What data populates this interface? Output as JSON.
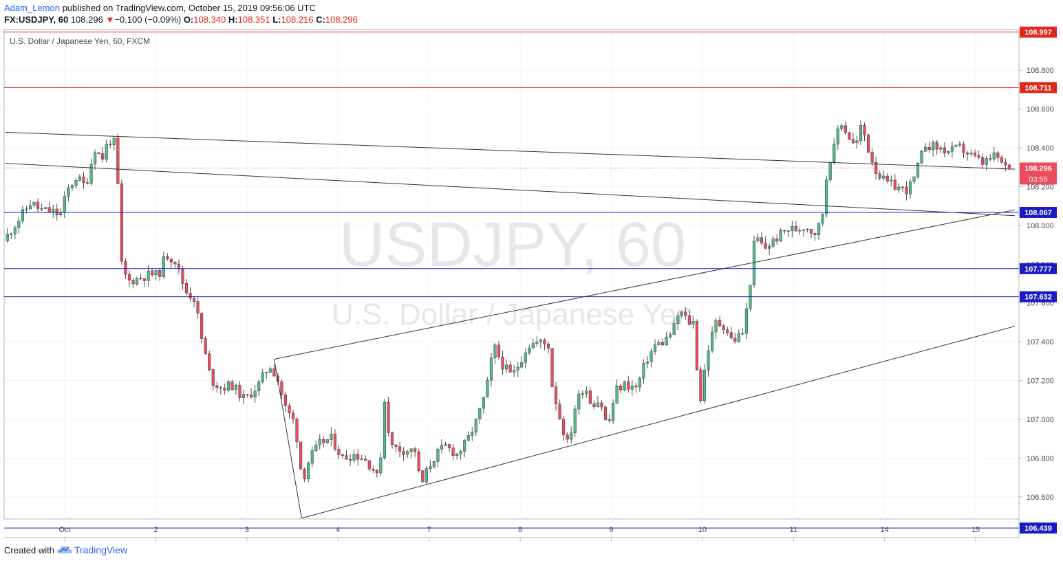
{
  "header": {
    "author": "Adam_Lemon",
    "published_text": "published on TradingView.com, October 15, 2019 09:56:06 UTC",
    "symbol": "FX:USDJPY, 60",
    "last": "108.296",
    "change_arrow": "▼",
    "change": "−0.100 (−0.09%)",
    "o_label": "O:",
    "o_val": "108.340",
    "h_label": "H:",
    "h_val": "108.351",
    "l_label": "L:",
    "l_val": "108.216",
    "c_label": "C:",
    "c_val": "108.296"
  },
  "pane_title": "U.S. Dollar / Japanese Yen, 60, FXCM",
  "watermark": {
    "line1": "USDJPY, 60",
    "line2": "U.S. Dollar / Japanese Yen"
  },
  "footer": {
    "created_with": "Created with",
    "brand": "TradingView",
    "logo_icon": "tradingview-cloud-icon"
  },
  "colors": {
    "up": "#53b987",
    "down": "#eb4d5c",
    "resistance": "#e0281b",
    "support": "#1b1bc4",
    "trend": "#333333"
  },
  "chart_data": {
    "type": "candlestick",
    "ylim": [
      106.39,
      109.01
    ],
    "y_ticks": [
      "108.800",
      "108.600",
      "108.400",
      "108.200",
      "108.000",
      "107.800",
      "107.600",
      "107.400",
      "107.200",
      "107.000",
      "106.800",
      "106.600"
    ],
    "x_ticks": [
      {
        "label": "Oct",
        "t": 0.65
      },
      {
        "label": "2",
        "t": 1.65
      },
      {
        "label": "3",
        "t": 2.65
      },
      {
        "label": "4",
        "t": 3.65
      },
      {
        "label": "7",
        "t": 4.65
      },
      {
        "label": "8",
        "t": 5.65
      },
      {
        "label": "9",
        "t": 6.65
      },
      {
        "label": "10",
        "t": 7.65
      },
      {
        "label": "11",
        "t": 8.65
      },
      {
        "label": "14",
        "t": 9.65
      },
      {
        "label": "15",
        "t": 10.65
      }
    ],
    "t_range": [
      0,
      11.08
    ],
    "horizontal_levels": [
      {
        "value": 108.997,
        "label": "108.997",
        "kind": "resistance"
      },
      {
        "value": 108.711,
        "label": "108.711",
        "kind": "resistance"
      },
      {
        "value": 108.067,
        "label": "108.067",
        "kind": "support"
      },
      {
        "value": 107.777,
        "label": "107.777",
        "kind": "support"
      },
      {
        "value": 107.632,
        "label": "107.632",
        "kind": "support"
      },
      {
        "value": 106.439,
        "label": "106.439",
        "kind": "support"
      }
    ],
    "last_price": {
      "value": 108.296,
      "label": "108.296",
      "countdown": "03:55"
    },
    "trendlines": [
      {
        "t1": 0.0,
        "p1": 108.48,
        "t2": 11.08,
        "p2": 108.29
      },
      {
        "t1": 0.0,
        "p1": 108.32,
        "t2": 11.08,
        "p2": 108.05
      },
      {
        "t1": 2.95,
        "p1": 107.31,
        "t2": 11.08,
        "p2": 108.08
      },
      {
        "t1": 3.25,
        "p1": 106.49,
        "t2": 11.08,
        "p2": 107.48
      },
      {
        "t1": 2.95,
        "p1": 107.31,
        "t2": 3.25,
        "p2": 106.49
      }
    ],
    "path": [
      [
        0.0,
        107.92
      ],
      [
        0.15,
        108.02
      ],
      [
        0.3,
        108.12
      ],
      [
        0.4,
        108.08
      ],
      [
        0.55,
        108.07
      ],
      [
        0.62,
        108.05
      ],
      [
        0.7,
        108.18
      ],
      [
        0.8,
        108.25
      ],
      [
        0.9,
        108.2
      ],
      [
        1.0,
        108.4
      ],
      [
        1.08,
        108.34
      ],
      [
        1.15,
        108.44
      ],
      [
        1.24,
        108.42
      ],
      [
        1.28,
        107.82
      ],
      [
        1.36,
        107.71
      ],
      [
        1.5,
        107.73
      ],
      [
        1.62,
        107.75
      ],
      [
        1.7,
        107.74
      ],
      [
        1.78,
        107.85
      ],
      [
        1.88,
        107.82
      ],
      [
        2.0,
        107.66
      ],
      [
        2.1,
        107.62
      ],
      [
        2.18,
        107.4
      ],
      [
        2.28,
        107.2
      ],
      [
        2.4,
        107.16
      ],
      [
        2.5,
        107.18
      ],
      [
        2.65,
        107.1
      ],
      [
        2.8,
        107.18
      ],
      [
        2.92,
        107.28
      ],
      [
        3.0,
        107.22
      ],
      [
        3.1,
        107.05
      ],
      [
        3.2,
        106.98
      ],
      [
        3.28,
        106.68
      ],
      [
        3.36,
        106.8
      ],
      [
        3.48,
        106.88
      ],
      [
        3.6,
        106.9
      ],
      [
        3.72,
        106.8
      ],
      [
        3.85,
        106.82
      ],
      [
        3.95,
        106.8
      ],
      [
        4.05,
        106.75
      ],
      [
        4.12,
        106.68
      ],
      [
        4.18,
        107.1
      ],
      [
        4.25,
        106.86
      ],
      [
        4.4,
        106.84
      ],
      [
        4.52,
        106.84
      ],
      [
        4.58,
        106.65
      ],
      [
        4.66,
        106.75
      ],
      [
        4.75,
        106.82
      ],
      [
        4.85,
        106.86
      ],
      [
        4.98,
        106.82
      ],
      [
        5.08,
        106.88
      ],
      [
        5.2,
        107.0
      ],
      [
        5.3,
        107.15
      ],
      [
        5.38,
        107.38
      ],
      [
        5.48,
        107.28
      ],
      [
        5.58,
        107.22
      ],
      [
        5.65,
        107.28
      ],
      [
        5.75,
        107.38
      ],
      [
        5.88,
        107.4
      ],
      [
        5.98,
        107.38
      ],
      [
        6.02,
        107.18
      ],
      [
        6.12,
        106.98
      ],
      [
        6.2,
        106.86
      ],
      [
        6.28,
        107.08
      ],
      [
        6.38,
        107.18
      ],
      [
        6.45,
        107.08
      ],
      [
        6.55,
        107.1
      ],
      [
        6.63,
        106.95
      ],
      [
        6.72,
        107.15
      ],
      [
        6.82,
        107.18
      ],
      [
        6.95,
        107.16
      ],
      [
        7.05,
        107.3
      ],
      [
        7.15,
        107.38
      ],
      [
        7.25,
        107.4
      ],
      [
        7.35,
        107.46
      ],
      [
        7.42,
        107.56
      ],
      [
        7.52,
        107.5
      ],
      [
        7.58,
        107.5
      ],
      [
        7.64,
        107.06
      ],
      [
        7.72,
        107.34
      ],
      [
        7.82,
        107.5
      ],
      [
        7.92,
        107.48
      ],
      [
        8.0,
        107.4
      ],
      [
        8.12,
        107.45
      ],
      [
        8.18,
        107.64
      ],
      [
        8.25,
        107.95
      ],
      [
        8.35,
        107.88
      ],
      [
        8.45,
        107.92
      ],
      [
        8.6,
        107.98
      ],
      [
        8.72,
        107.98
      ],
      [
        8.8,
        108.0
      ],
      [
        8.9,
        107.96
      ],
      [
        8.98,
        108.02
      ],
      [
        9.05,
        108.32
      ],
      [
        9.12,
        108.4
      ],
      [
        9.18,
        108.55
      ],
      [
        9.25,
        108.48
      ],
      [
        9.35,
        108.4
      ],
      [
        9.42,
        108.52
      ],
      [
        9.5,
        108.38
      ],
      [
        9.58,
        108.28
      ],
      [
        9.68,
        108.22
      ],
      [
        9.8,
        108.2
      ],
      [
        9.9,
        108.18
      ],
      [
        9.98,
        108.22
      ],
      [
        10.05,
        108.32
      ],
      [
        10.12,
        108.42
      ],
      [
        10.25,
        108.4
      ],
      [
        10.38,
        108.38
      ],
      [
        10.5,
        108.4
      ],
      [
        10.62,
        108.36
      ],
      [
        10.75,
        108.32
      ],
      [
        10.9,
        108.36
      ],
      [
        10.98,
        108.3
      ],
      [
        11.04,
        108.296
      ]
    ]
  }
}
